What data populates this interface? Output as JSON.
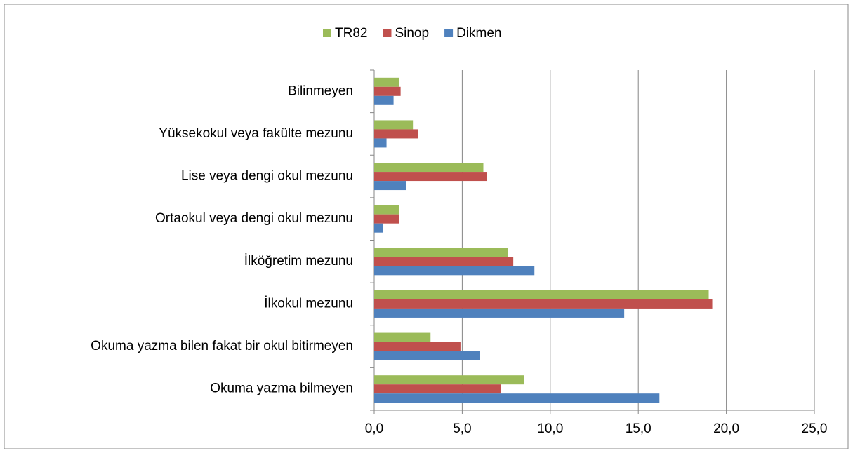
{
  "chart_data": {
    "type": "bar",
    "orientation": "horizontal",
    "categories": [
      "Bilinmeyen",
      "Yüksekokul veya fakülte mezunu",
      "Lise veya dengi okul mezunu",
      "Ortaokul veya dengi okul mezunu",
      "İlköğretim mezunu",
      "İlkokul mezunu",
      "Okuma yazma bilen fakat bir okul bitirmeyen",
      "Okuma yazma bilmeyen"
    ],
    "series": [
      {
        "name": "TR82",
        "color": "#9bbb59",
        "values": [
          1.4,
          2.2,
          6.2,
          1.4,
          7.6,
          19.0,
          3.2,
          8.5
        ]
      },
      {
        "name": "Sinop",
        "color": "#c0504d",
        "values": [
          1.5,
          2.5,
          6.4,
          1.4,
          7.9,
          19.2,
          4.9,
          7.2
        ]
      },
      {
        "name": "Dikmen",
        "color": "#4f81bd",
        "values": [
          1.1,
          0.7,
          1.8,
          0.5,
          9.1,
          14.2,
          6.0,
          16.2
        ]
      }
    ],
    "xlim": [
      0,
      25
    ],
    "xticks": [
      {
        "value": 0,
        "label": "0,0"
      },
      {
        "value": 5,
        "label": "5,0"
      },
      {
        "value": 10,
        "label": "10,0"
      },
      {
        "value": 15,
        "label": "15,0"
      },
      {
        "value": 20,
        "label": "20,0"
      },
      {
        "value": 25,
        "label": "25,0"
      }
    ],
    "grid": true,
    "legend": "top"
  }
}
